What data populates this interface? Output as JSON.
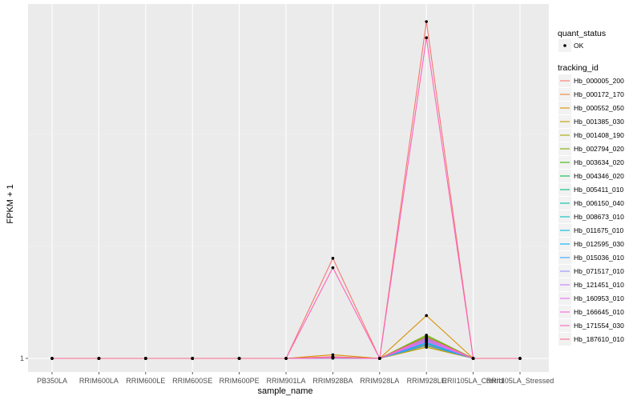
{
  "chart_data": {
    "type": "line",
    "xlabel": "sample_name",
    "ylabel": "FPKM + 1",
    "x": [
      "PB350LA",
      "RRIM600LA",
      "RRIM600LE",
      "RRIM600SE",
      "RRIM600PE",
      "RRIM901LA",
      "RRIM928BA",
      "RRIM928LA",
      "RRIM928LE",
      "RRII105LA_Control",
      "RRII105LA_Stressed"
    ],
    "yticks": [
      {
        "value": 1,
        "label": "1"
      }
    ],
    "ylim": [
      0,
      1000
    ],
    "grid": true,
    "legend_position": "right",
    "point_legend": {
      "title": "quant_status",
      "entries": [
        "OK"
      ]
    },
    "color_legend_title": "tracking_id",
    "series": [
      {
        "name": "Hb_000005_200",
        "color": "#F8766D",
        "values": [
          1,
          1,
          1,
          1,
          1,
          1,
          298,
          1,
          1000,
          1,
          1
        ]
      },
      {
        "name": "Hb_000172_170",
        "color": "#EA8331",
        "values": [
          1,
          1,
          1,
          1,
          1,
          1,
          6,
          1,
          43,
          1,
          1
        ]
      },
      {
        "name": "Hb_000552_050",
        "color": "#D89000",
        "values": [
          1,
          1,
          1,
          1,
          1,
          1,
          12,
          1,
          128,
          1,
          1
        ]
      },
      {
        "name": "Hb_001385_030",
        "color": "#C09B00",
        "values": [
          1,
          1,
          1,
          1,
          1,
          1,
          3,
          1,
          34,
          1,
          1
        ]
      },
      {
        "name": "Hb_001408_190",
        "color": "#A3A500",
        "values": [
          1,
          1,
          1,
          1,
          1,
          1,
          4,
          1,
          38,
          1,
          1
        ]
      },
      {
        "name": "Hb_002794_020",
        "color": "#7CAE00",
        "values": [
          1,
          1,
          1,
          1,
          1,
          1,
          5,
          1,
          70,
          1,
          1
        ]
      },
      {
        "name": "Hb_003634_020",
        "color": "#39B600",
        "values": [
          1,
          1,
          1,
          1,
          1,
          1,
          3,
          1,
          66,
          1,
          1
        ]
      },
      {
        "name": "Hb_004346_020",
        "color": "#00BB4E",
        "values": [
          1,
          1,
          1,
          1,
          1,
          1,
          2,
          1,
          62,
          1,
          1
        ]
      },
      {
        "name": "Hb_005411_010",
        "color": "#00BF7D",
        "values": [
          1,
          1,
          1,
          1,
          1,
          1,
          3,
          1,
          58,
          1,
          1
        ]
      },
      {
        "name": "Hb_006150_040",
        "color": "#00C1A3",
        "values": [
          1,
          1,
          1,
          1,
          1,
          1,
          4,
          1,
          55,
          1,
          1
        ]
      },
      {
        "name": "Hb_008673_010",
        "color": "#00BFC4",
        "values": [
          1,
          1,
          1,
          1,
          1,
          1,
          2,
          1,
          52,
          1,
          1
        ]
      },
      {
        "name": "Hb_011675_010",
        "color": "#00BAE0",
        "values": [
          1,
          1,
          1,
          1,
          1,
          1,
          3,
          1,
          48,
          1,
          1
        ]
      },
      {
        "name": "Hb_012595_030",
        "color": "#00B0F6",
        "values": [
          1,
          1,
          1,
          1,
          1,
          1,
          2,
          1,
          45,
          1,
          1
        ]
      },
      {
        "name": "Hb_015036_010",
        "color": "#35A2FF",
        "values": [
          1,
          1,
          1,
          1,
          1,
          1,
          3,
          1,
          40,
          1,
          1
        ]
      },
      {
        "name": "Hb_071517_010",
        "color": "#9590FF",
        "values": [
          1,
          1,
          1,
          1,
          1,
          1,
          4,
          1,
          50,
          1,
          1
        ]
      },
      {
        "name": "Hb_121451_010",
        "color": "#C77CFF",
        "values": [
          1,
          1,
          1,
          1,
          1,
          1,
          3,
          1,
          56,
          1,
          1
        ]
      },
      {
        "name": "Hb_160953_010",
        "color": "#E76BF3",
        "values": [
          1,
          1,
          1,
          1,
          1,
          1,
          5,
          1,
          60,
          1,
          1
        ]
      },
      {
        "name": "Hb_166645_010",
        "color": "#FA62DB",
        "values": [
          1,
          1,
          1,
          1,
          1,
          1,
          2,
          1,
          53,
          1,
          1
        ]
      },
      {
        "name": "Hb_171554_030",
        "color": "#FF62BC",
        "values": [
          1,
          1,
          1,
          1,
          1,
          1,
          270,
          1,
          952,
          1,
          1
        ]
      },
      {
        "name": "Hb_187610_010",
        "color": "#FF6C91",
        "values": [
          1,
          1,
          1,
          1,
          1,
          1,
          4,
          1,
          64,
          1,
          1
        ]
      }
    ]
  }
}
